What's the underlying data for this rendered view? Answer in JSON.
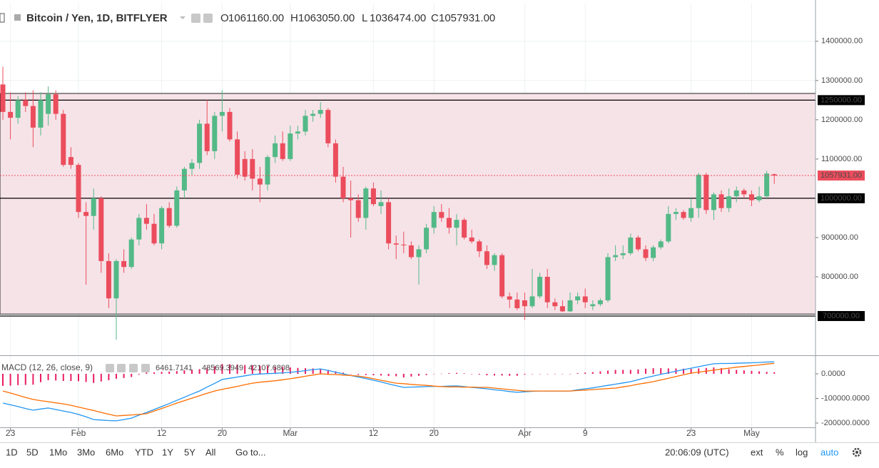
{
  "header": {
    "symbol": "Bitcoin / Yen, 1D, BITFLYER",
    "ohlc": [
      {
        "key": "O",
        "value": "1061160.00"
      },
      {
        "key": "H",
        "value": "1063050.00"
      },
      {
        "key": "L",
        "value": "1036474.00"
      },
      {
        "key": "C",
        "value": "1057931.00"
      }
    ]
  },
  "chart_data": [
    {
      "type": "candlestick",
      "up_color": "#53b987",
      "down_color": "#eb4d5c",
      "grid": true,
      "x": [
        0,
        1,
        2,
        3,
        4,
        5,
        6,
        7,
        8,
        9,
        10,
        11,
        12,
        13,
        14,
        15,
        16,
        17,
        18,
        19,
        20,
        21,
        22,
        23,
        24,
        25,
        26,
        27,
        28,
        29,
        30,
        31,
        32,
        33,
        34,
        35,
        36,
        37,
        38,
        39,
        40,
        41,
        42,
        43,
        44,
        45,
        46,
        47,
        48,
        49,
        50,
        51,
        52,
        53,
        54,
        55,
        56,
        57,
        58,
        59,
        60,
        61,
        62,
        63,
        64,
        65,
        66,
        67,
        68,
        69,
        70,
        71,
        72,
        73,
        74,
        75,
        76,
        77,
        78,
        79,
        80,
        81,
        82,
        83,
        84,
        85,
        86,
        87,
        88,
        89,
        90,
        91,
        92,
        93,
        94,
        95,
        96,
        97,
        98,
        99,
        100,
        101,
        102
      ],
      "open": [
        1290000,
        1220000,
        1205000,
        1250000,
        1235000,
        1180000,
        1215000,
        1265000,
        1215000,
        1105000,
        1085000,
        965000,
        955000,
        1000000,
        840000,
        745000,
        840000,
        825000,
        895000,
        950000,
        935000,
        885000,
        975000,
        930000,
        1020000,
        1075000,
        1090000,
        1190000,
        1120000,
        1210000,
        1220000,
        1150000,
        1100000,
        1100000,
        1050000,
        1035000,
        1105000,
        1140000,
        1100000,
        1165000,
        1170000,
        1210000,
        1215000,
        1225000,
        1140000,
        1055000,
        1000000,
        995000,
        950000,
        1025000,
        980000,
        990000,
        885000,
        882000,
        880000,
        850000,
        870000,
        925000,
        965000,
        950000,
        925000,
        945000,
        900000,
        890000,
        865000,
        830000,
        855000,
        750000,
        742000,
        740000,
        725000,
        750000,
        800000,
        735000,
        725000,
        712000,
        740000,
        750000,
        725000,
        730000,
        740000,
        850000,
        855000,
        860000,
        900000,
        870000,
        848000,
        875000,
        890000,
        960000,
        965000,
        950000,
        975000,
        1060000,
        970000,
        1010000,
        975000,
        1005000,
        1020000,
        1010000,
        995000,
        1005000,
        1061160
      ],
      "high": [
        1335000,
        1270000,
        1260000,
        1270000,
        1275000,
        1270000,
        1285000,
        1275000,
        1225000,
        1130000,
        1090000,
        990000,
        1025000,
        1005000,
        860000,
        845000,
        870000,
        900000,
        960000,
        985000,
        960000,
        980000,
        990000,
        1030000,
        1080000,
        1100000,
        1200000,
        1250000,
        1220000,
        1275000,
        1230000,
        1170000,
        1120000,
        1125000,
        1080000,
        1110000,
        1160000,
        1170000,
        1185000,
        1185000,
        1225000,
        1225000,
        1245000,
        1230000,
        1150000,
        1080000,
        1045000,
        1010000,
        1030000,
        1040000,
        1020000,
        1000000,
        905000,
        915000,
        890000,
        880000,
        935000,
        980000,
        985000,
        975000,
        960000,
        950000,
        920000,
        895000,
        880000,
        860000,
        860000,
        760000,
        760000,
        760000,
        820000,
        810000,
        820000,
        745000,
        740000,
        760000,
        760000,
        770000,
        740000,
        745000,
        860000,
        880000,
        880000,
        910000,
        905000,
        880000,
        880000,
        895000,
        980000,
        975000,
        970000,
        1000000,
        1065000,
        1065000,
        1015000,
        1020000,
        1025000,
        1030000,
        1025000,
        1020000,
        1030000,
        1070000,
        1063050
      ],
      "low": [
        1200000,
        1150000,
        1190000,
        1220000,
        1130000,
        1160000,
        1185000,
        1200000,
        1080000,
        1075000,
        950000,
        780000,
        920000,
        810000,
        720000,
        640000,
        810000,
        820000,
        880000,
        920000,
        880000,
        870000,
        925000,
        925000,
        1000000,
        1060000,
        1075000,
        1110000,
        1100000,
        1170000,
        1145000,
        1050000,
        1045000,
        1020000,
        990000,
        1020000,
        1090000,
        1095000,
        1095000,
        1150000,
        1160000,
        1195000,
        1205000,
        1130000,
        1040000,
        990000,
        900000,
        940000,
        920000,
        980000,
        960000,
        870000,
        845000,
        860000,
        845000,
        780000,
        860000,
        910000,
        940000,
        910000,
        880000,
        895000,
        885000,
        850000,
        820000,
        815000,
        745000,
        720000,
        715000,
        690000,
        720000,
        745000,
        720000,
        715000,
        710000,
        710000,
        730000,
        720000,
        715000,
        725000,
        735000,
        840000,
        845000,
        855000,
        865000,
        840000,
        840000,
        870000,
        885000,
        945000,
        945000,
        940000,
        950000,
        960000,
        945000,
        965000,
        965000,
        990000,
        1000000,
        980000,
        990000,
        1000000,
        1036474
      ],
      "close": [
        1220000,
        1205000,
        1250000,
        1235000,
        1180000,
        1250000,
        1265000,
        1215000,
        1085000,
        1085000,
        965000,
        955000,
        1000000,
        840000,
        745000,
        840000,
        825000,
        895000,
        950000,
        935000,
        885000,
        975000,
        930000,
        1020000,
        1075000,
        1090000,
        1190000,
        1120000,
        1210000,
        1220000,
        1150000,
        1060000,
        1055000,
        1050000,
        1035000,
        1105000,
        1140000,
        1100000,
        1165000,
        1170000,
        1210000,
        1215000,
        1225000,
        1140000,
        1055000,
        1000000,
        995000,
        950000,
        1025000,
        985000,
        990000,
        885000,
        882000,
        880000,
        850000,
        870000,
        925000,
        965000,
        950000,
        925000,
        945000,
        900000,
        890000,
        865000,
        830000,
        855000,
        750000,
        742000,
        720000,
        725000,
        750000,
        800000,
        735000,
        725000,
        712000,
        740000,
        750000,
        735000,
        730000,
        740000,
        850000,
        855000,
        860000,
        900000,
        870000,
        848000,
        875000,
        890000,
        960000,
        965000,
        950000,
        975000,
        1060000,
        970000,
        1010000,
        975000,
        1005000,
        1020000,
        1010000,
        995000,
        1005000,
        1063000,
        1057931
      ],
      "last_label": "1057931.00",
      "xlim": [
        -0.377,
        107.45
      ],
      "ylim": [
        600000,
        1496000
      ],
      "yticks": [
        {
          "value": 1400000,
          "label": "1400000.00"
        },
        {
          "value": 1300000,
          "label": "1300000.00"
        },
        {
          "value": 1200000,
          "label": "1200000.00"
        },
        {
          "value": 1100000,
          "label": "1100000.00"
        },
        {
          "value": 900000,
          "label": "900000.00"
        },
        {
          "value": 800000,
          "label": "800000.00"
        }
      ],
      "xticks": [
        {
          "value": 1,
          "label": "23"
        },
        {
          "value": 10,
          "label": "Feb"
        },
        {
          "value": 21,
          "label": "12"
        },
        {
          "value": 29,
          "label": "20"
        },
        {
          "value": 38,
          "label": "Mar"
        },
        {
          "value": 49,
          "label": "12"
        },
        {
          "value": 57,
          "label": "20"
        },
        {
          "value": 69,
          "label": "Apr"
        },
        {
          "value": 77,
          "label": "9"
        },
        {
          "value": 91,
          "label": "23"
        },
        {
          "value": 99,
          "label": "May"
        }
      ],
      "levels": [
        {
          "value": 1250000,
          "label": "1250000.00"
        },
        {
          "value": 1000000,
          "label": "1000000.00"
        },
        {
          "value": 700000,
          "label": "700000.00"
        }
      ],
      "range_box": [
        705000,
        1267000
      ],
      "range_color": "#f6e3e8"
    },
    {
      "type": "macd",
      "title": "MACD (12, 26, close, 9)",
      "ylim": [
        -214600,
        69600
      ],
      "yticks": [
        {
          "value": 0,
          "label": "0.0000"
        },
        {
          "value": -100000,
          "label": "-100000.0000"
        },
        {
          "value": -200000,
          "label": "-200000.0000"
        }
      ],
      "series": [
        {
          "kind": "histogram",
          "color": "#e91e63",
          "label": "6461.7141",
          "values": [
            -49000,
            -48000,
            -46000,
            -45000,
            -44000,
            -34000,
            -26000,
            -27000,
            -29000,
            -29000,
            -30000,
            -33000,
            -37000,
            -31000,
            -26000,
            -20000,
            -17000,
            -13000,
            -3000,
            5000,
            6000,
            8000,
            9000,
            11000,
            14000,
            17000,
            19000,
            25000,
            31000,
            40000,
            39000,
            38000,
            36000,
            35000,
            33000,
            32000,
            30000,
            28000,
            26000,
            24000,
            23000,
            22000,
            20000,
            16000,
            10000,
            5000,
            0,
            -4000,
            -5000,
            -6000,
            -7000,
            -9000,
            -10000,
            -15000,
            -11000,
            -8000,
            -5000,
            -1000,
            1000,
            3000,
            4000,
            2000,
            -1000,
            -3000,
            -6000,
            -7000,
            -7000,
            -8000,
            -8000,
            -3000,
            -1000,
            0,
            0,
            0,
            0,
            0,
            3000,
            5000,
            7000,
            10000,
            13000,
            16000,
            16000,
            16000,
            18000,
            21000,
            23000,
            23000,
            22000,
            22000,
            21000,
            20000,
            22000,
            24000,
            26000,
            23000,
            19000,
            16000,
            14000,
            12000,
            10000,
            8000,
            6461.7141
          ]
        },
        {
          "kind": "line",
          "color": "#2196f3",
          "label": "48569.3949",
          "values": [
            -119000,
            -126000,
            -133000,
            -141000,
            -148000,
            -143000,
            -139000,
            -145000,
            -151000,
            -157000,
            -165000,
            -175000,
            -186000,
            -188000,
            -190000,
            -191000,
            -186000,
            -180000,
            -168000,
            -157000,
            -145000,
            -133000,
            -121000,
            -108000,
            -95000,
            -82000,
            -70000,
            -54000,
            -39000,
            -23000,
            -18000,
            -13000,
            -8000,
            -3000,
            -1000,
            1000,
            2000,
            4000,
            6000,
            9000,
            13000,
            17000,
            20000,
            14000,
            7000,
            0,
            -7000,
            -13000,
            -19000,
            -26000,
            -33000,
            -41000,
            -48000,
            -55000,
            -54000,
            -53000,
            -52000,
            -51000,
            -51000,
            -50000,
            -49000,
            -52000,
            -55000,
            -58000,
            -61000,
            -65000,
            -68000,
            -72000,
            -75000,
            -73000,
            -71000,
            -70000,
            -70000,
            -70000,
            -70000,
            -70000,
            -65000,
            -61000,
            -57000,
            -52000,
            -47000,
            -42000,
            -37000,
            -32000,
            -24000,
            -16000,
            -9000,
            -2000,
            4000,
            11000,
            17000,
            23000,
            29000,
            35000,
            41000,
            42000,
            42000,
            43000,
            44000,
            45000,
            46000,
            48000,
            48569.3949
          ]
        },
        {
          "kind": "line",
          "color": "#ff6d00",
          "label": "42107.6808",
          "values": [
            -70000,
            -78000,
            -87000,
            -96000,
            -104000,
            -109000,
            -113000,
            -118000,
            -122000,
            -128000,
            -135000,
            -142000,
            -149000,
            -157000,
            -164000,
            -171000,
            -169000,
            -167000,
            -165000,
            -162000,
            -151000,
            -141000,
            -130000,
            -119000,
            -109000,
            -99000,
            -89000,
            -79000,
            -70000,
            -63000,
            -57000,
            -51000,
            -44000,
            -38000,
            -34000,
            -31000,
            -28000,
            -24000,
            -20000,
            -15000,
            -10000,
            -5000,
            0,
            -2000,
            -3000,
            -5000,
            -7000,
            -9000,
            -14000,
            -20000,
            -26000,
            -32000,
            -38000,
            -40000,
            -43000,
            -45000,
            -47000,
            -50000,
            -52000,
            -53000,
            -53000,
            -54000,
            -54000,
            -55000,
            -55000,
            -58000,
            -61000,
            -64000,
            -67000,
            -70000,
            -70000,
            -70000,
            -70000,
            -70000,
            -70000,
            -70000,
            -68000,
            -66000,
            -64000,
            -62000,
            -60000,
            -58000,
            -53000,
            -48000,
            -42000,
            -37000,
            -32000,
            -25000,
            -18000,
            -11000,
            -4000,
            3000,
            7000,
            11000,
            15000,
            19000,
            23000,
            27000,
            30000,
            33000,
            36000,
            40000,
            42107.6808
          ]
        }
      ]
    }
  ],
  "toolbar": {
    "ranges": [
      "1D",
      "5D",
      "1Mo",
      "3Mo",
      "6Mo",
      "YTD",
      "1Y",
      "5Y",
      "All"
    ],
    "goto": "Go to...",
    "clock": "20:06:09 (UTC)",
    "options": [
      "ext",
      "%",
      "log",
      "auto"
    ]
  }
}
